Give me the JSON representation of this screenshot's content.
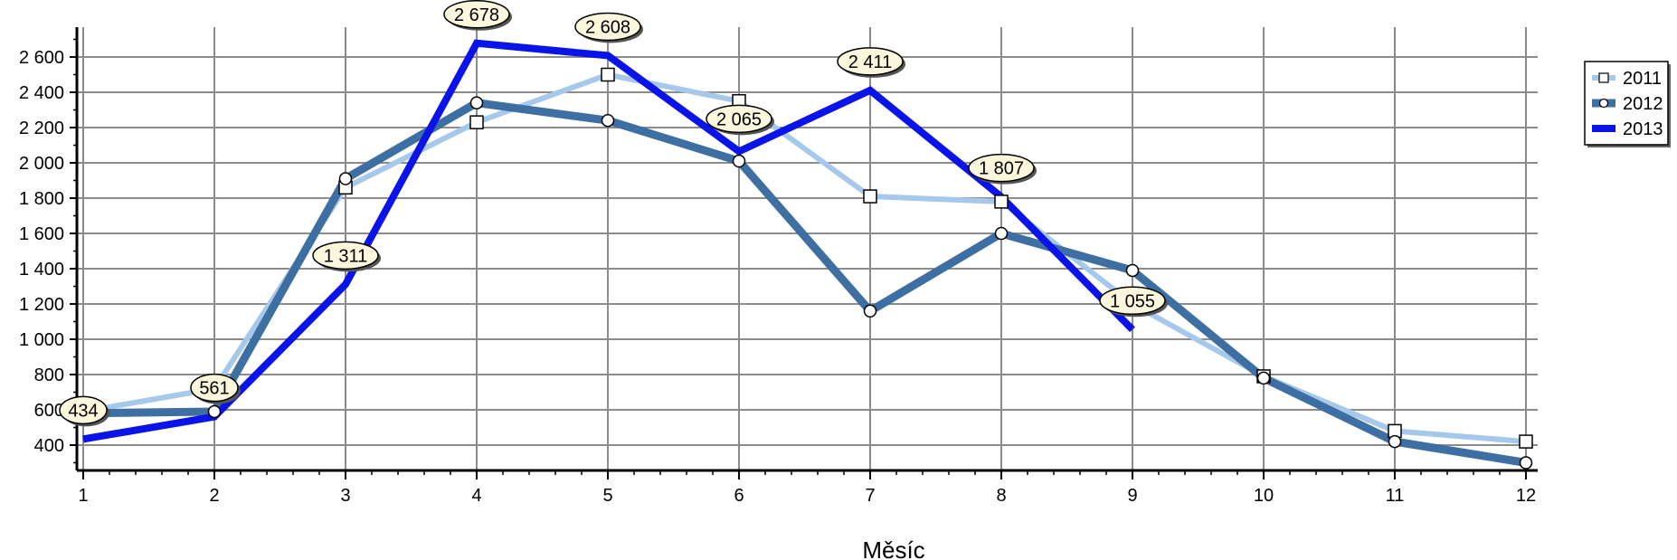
{
  "chart_data": {
    "type": "line",
    "title": "",
    "xlabel": "Měsíc",
    "ylabel": "",
    "categories": [
      "1",
      "2",
      "3",
      "4",
      "5",
      "6",
      "7",
      "8",
      "9",
      "10",
      "11",
      "12"
    ],
    "y_ticks": [
      "400",
      "600",
      "800",
      "1 000",
      "1 200",
      "1 400",
      "1 600",
      "1 800",
      "2 000",
      "2 200",
      "2 400",
      "2 600"
    ],
    "ylim": [
      270,
      2780
    ],
    "grid": true,
    "legend_position": "right",
    "series": [
      {
        "name": "2011",
        "color": "#a6c8ea",
        "marker": "square",
        "values": [
          590,
          720,
          1860,
          2230,
          2500,
          2350,
          1810,
          1780,
          1200,
          790,
          480,
          420
        ]
      },
      {
        "name": "2012",
        "color": "#3d6fa3",
        "marker": "circle",
        "values": [
          580,
          590,
          1910,
          2340,
          2240,
          2010,
          1160,
          1600,
          1390,
          780,
          420,
          300
        ]
      },
      {
        "name": "2013",
        "color": "#0a14e8",
        "marker": "none",
        "values": [
          434,
          561,
          1311,
          2678,
          2608,
          2065,
          2411,
          1807,
          1055,
          null,
          null,
          null
        ]
      }
    ],
    "data_labels": [
      "434",
      "561",
      "1 311",
      "2 678",
      "2 608",
      "2 065",
      "2 411",
      "1 807",
      "1 055"
    ]
  }
}
